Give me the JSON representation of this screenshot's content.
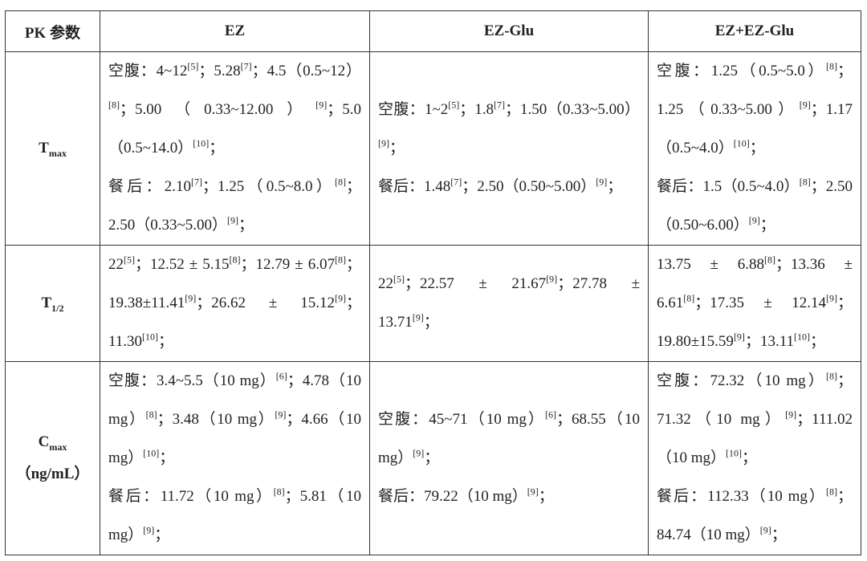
{
  "table": {
    "header": [
      "PK 参数",
      "EZ",
      "EZ-Glu",
      "EZ+EZ-Glu"
    ],
    "rows": [
      {
        "label": {
          "text": "T",
          "sub": "max"
        },
        "cells": [
          [
            [
              {
                "text": "空腹：4~12",
                "sup": "[5]"
              },
              {
                "text": "；5.28",
                "sup": "[7]"
              },
              {
                "text": "；4.5（0.5~12）",
                "sup": "[8]"
              },
              {
                "text": "；5.00（0.33~12.00）",
                "sup": "[9]"
              },
              {
                "text": "；5.0（0.5~14.0）",
                "sup": "[10]"
              },
              {
                "text": "；"
              }
            ],
            [
              {
                "text": "餐后：2.10",
                "sup": "[7]"
              },
              {
                "text": "；1.25（0.5~8.0）",
                "sup": "[8]"
              },
              {
                "text": "；2.50（0.33~5.00）",
                "sup": "[9]"
              },
              {
                "text": "；"
              }
            ]
          ],
          [
            [
              {
                "text": "空腹：1~2",
                "sup": "[5]"
              },
              {
                "text": "；1.8",
                "sup": "[7]"
              },
              {
                "text": "；1.50（0.33~5.00）",
                "sup": "[9]"
              },
              {
                "text": "；"
              }
            ],
            [
              {
                "text": "餐后：1.48",
                "sup": "[7]"
              },
              {
                "text": "；2.50（0.50~5.00）",
                "sup": "[9]"
              },
              {
                "text": "；"
              }
            ]
          ],
          [
            [
              {
                "text": "空腹：1.25（0.5~5.0）",
                "sup": "[8]"
              },
              {
                "text": "；1.25（0.33~5.00）",
                "sup": "[9]"
              },
              {
                "text": "；1.17（0.5~4.0）",
                "sup": "[10]"
              },
              {
                "text": "；"
              }
            ],
            [
              {
                "text": "餐后：1.5（0.5~4.0）",
                "sup": "[8]"
              },
              {
                "text": "；2.50（0.50~6.00）",
                "sup": "[9]"
              },
              {
                "text": "；"
              }
            ]
          ]
        ]
      },
      {
        "label": {
          "text": "T",
          "sub": "1/2"
        },
        "cells": [
          [
            [
              {
                "text": "22",
                "sup": "[5]"
              },
              {
                "text": "；12.52 ± 5.15",
                "sup": "[8]"
              },
              {
                "text": "；12.79 ± 6.07",
                "sup": "[8]"
              },
              {
                "text": "；19.38±11.41",
                "sup": "[9]"
              },
              {
                "text": "；26.62 ± 15.12",
                "sup": "[9]"
              },
              {
                "text": "；11.30",
                "sup": "[10]"
              },
              {
                "text": "；"
              }
            ]
          ],
          [
            [
              {
                "text": "22",
                "sup": "[5]"
              },
              {
                "text": "；22.57 ± 21.67",
                "sup": "[9]"
              },
              {
                "text": "；27.78 ± 13.71",
                "sup": "[9]"
              },
              {
                "text": "；"
              }
            ]
          ],
          [
            [
              {
                "text": "13.75 ± 6.88",
                "sup": "[8]"
              },
              {
                "text": "；13.36 ± 6.61",
                "sup": "[8]"
              },
              {
                "text": "；17.35 ± 12.14",
                "sup": "[9]"
              },
              {
                "text": "；19.80±15.59",
                "sup": "[9]"
              },
              {
                "text": "；13.11",
                "sup": "[10]"
              },
              {
                "text": "；"
              }
            ]
          ]
        ]
      },
      {
        "label": {
          "text": "C",
          "sub": "max",
          "unit": "（ng/mL）"
        },
        "cells": [
          [
            [
              {
                "text": "空腹：3.4~5.5（10 mg）",
                "sup": "[6]"
              },
              {
                "text": "；4.78（10 mg）",
                "sup": "[8]"
              },
              {
                "text": "；3.48（10 mg）",
                "sup": "[9]"
              },
              {
                "text": "；4.66（10 mg）",
                "sup": "[10]"
              },
              {
                "text": "；"
              }
            ],
            [
              {
                "text": "餐后：11.72（10 mg）",
                "sup": "[8]"
              },
              {
                "text": "；5.81（10 mg）",
                "sup": "[9]"
              },
              {
                "text": "；"
              }
            ]
          ],
          [
            [
              {
                "text": "空腹：45~71（10 mg）",
                "sup": "[6]"
              },
              {
                "text": "；68.55（10 mg）",
                "sup": "[9]"
              },
              {
                "text": "；"
              }
            ],
            [
              {
                "text": "餐后：79.22（10 mg）",
                "sup": "[9]"
              },
              {
                "text": "；"
              }
            ]
          ],
          [
            [
              {
                "text": "空腹：72.32（10 mg）",
                "sup": "[8]"
              },
              {
                "text": "；71.32（10 mg）",
                "sup": "[9]"
              },
              {
                "text": "；111.02（10 mg）",
                "sup": "[10]"
              },
              {
                "text": "；"
              }
            ],
            [
              {
                "text": "餐后：112.33（10 mg）",
                "sup": "[8]"
              },
              {
                "text": "；84.74（10 mg）",
                "sup": "[9]"
              },
              {
                "text": "；"
              }
            ]
          ]
        ]
      }
    ]
  }
}
